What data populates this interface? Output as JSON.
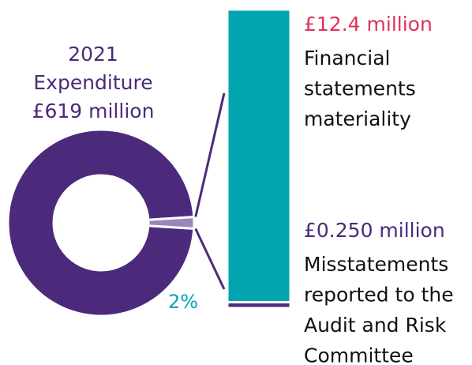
{
  "chart_data": {
    "type": "donut",
    "title_lines": [
      "2021",
      "Expenditure",
      "£619 million"
    ],
    "slices": [
      {
        "value": 98,
        "color": "#4b2a7b"
      },
      {
        "value": 2,
        "label": "2%",
        "color": "#9a86b9"
      }
    ],
    "breakdown": {
      "segments": [
        {
          "value": 12.4,
          "label": "£12.4 million",
          "label_color": "#e0325a",
          "description": [
            "Financial",
            "statements",
            "materiality"
          ],
          "color": "#00a5b0"
        },
        {
          "value": 0.25,
          "label": "£0.250 million",
          "label_color": "#4b2a7b",
          "description": [
            "Misstatements",
            "reported to the",
            "Audit and Risk",
            "Committee"
          ],
          "color": "#4b2a7b"
        }
      ]
    }
  }
}
